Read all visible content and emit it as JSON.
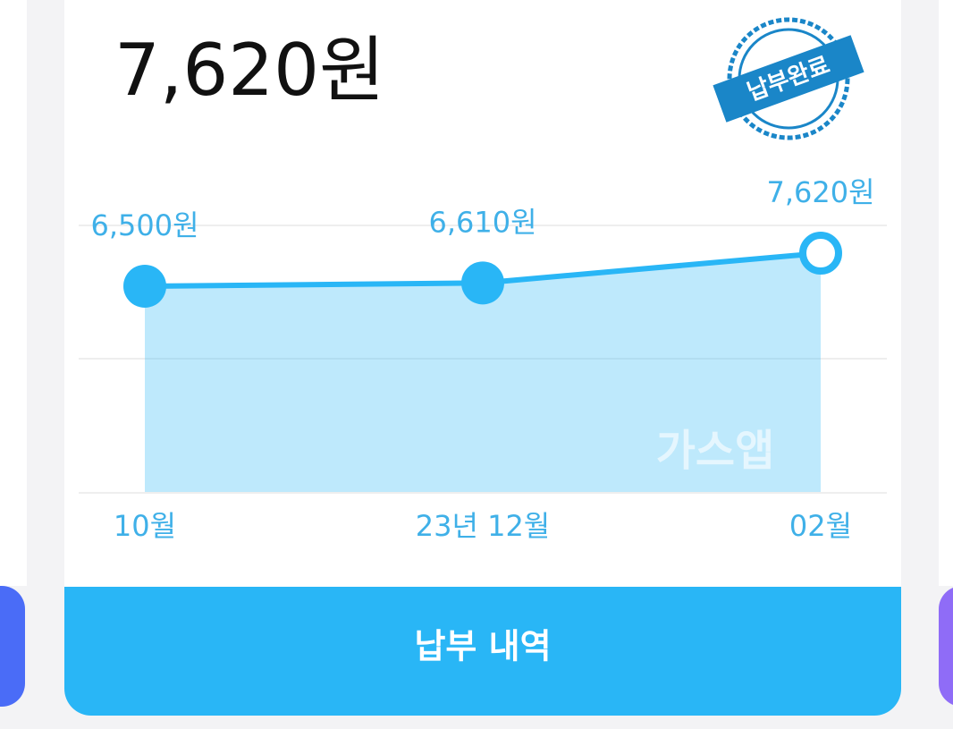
{
  "header": {
    "amount": "7,620원"
  },
  "stamp": "납부완료",
  "watermark": "가스앱",
  "button": "납부 내역",
  "chart_data": {
    "type": "area",
    "categories": [
      "10월",
      "23년 12월",
      "02월"
    ],
    "values": [
      6500,
      6610,
      7620
    ],
    "value_labels": [
      "6,500원",
      "6,610원",
      "7,620원"
    ],
    "color": "#29b6f6",
    "ylim": [
      -500,
      8560
    ]
  }
}
